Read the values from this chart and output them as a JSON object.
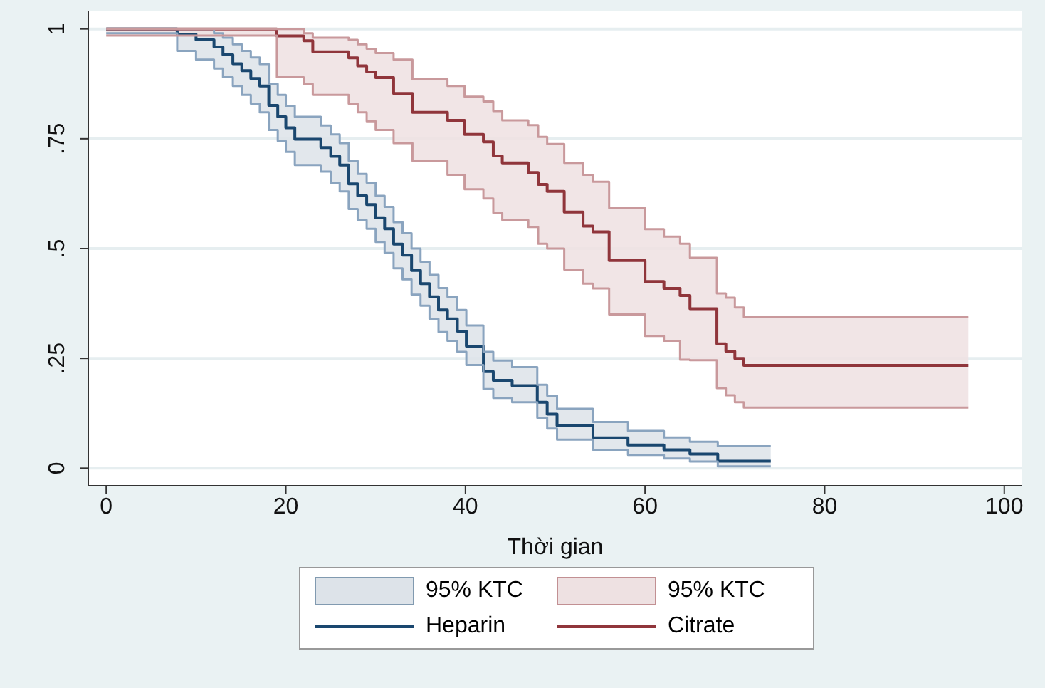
{
  "chart_data": {
    "type": "step",
    "xlabel": "Thời gian",
    "xlim": [
      -2,
      102
    ],
    "xticks": [
      0,
      20,
      40,
      60,
      80,
      100
    ],
    "ylim": [
      -0.04,
      1.04
    ],
    "yticks": [
      0,
      {
        "value": 0.25,
        "label": ".25"
      },
      {
        "value": 0.5,
        "label": ".5"
      },
      {
        "value": 0.75,
        "label": ".75"
      },
      1
    ],
    "grid": "y",
    "legend": "bottom",
    "annotations": [
      "95% KTC",
      "95% KTC"
    ],
    "series": [
      {
        "name": "Heparin",
        "color": "#1a476f",
        "x": [
          0,
          7.9,
          10,
          12,
          13,
          14.1,
          15.1,
          16.1,
          17.1,
          18.1,
          19.1,
          20,
          21,
          23.9,
          25,
          26,
          27,
          28,
          29,
          30,
          31,
          32,
          33,
          34,
          35,
          36,
          37,
          38,
          39.1,
          40.1,
          42,
          43.1,
          45.2,
          48,
          49.1,
          50.2,
          54.2,
          58.1,
          62.1,
          65,
          68.1,
          74
        ],
        "values": [
          1,
          0.988,
          0.975,
          0.959,
          0.941,
          0.921,
          0.905,
          0.887,
          0.87,
          0.826,
          0.8,
          0.775,
          0.749,
          0.73,
          0.71,
          0.69,
          0.647,
          0.62,
          0.6,
          0.57,
          0.545,
          0.51,
          0.485,
          0.45,
          0.42,
          0.39,
          0.36,
          0.34,
          0.312,
          0.278,
          0.22,
          0.2,
          0.188,
          0.15,
          0.123,
          0.097,
          0.069,
          0.053,
          0.042,
          0.032,
          0.016,
          0.016
        ],
        "upper": [
          1,
          1,
          1,
          0.99,
          0.98,
          0.965,
          0.95,
          0.935,
          0.92,
          0.875,
          0.85,
          0.825,
          0.8,
          0.78,
          0.76,
          0.74,
          0.7,
          0.67,
          0.65,
          0.62,
          0.595,
          0.56,
          0.535,
          0.5,
          0.47,
          0.44,
          0.41,
          0.39,
          0.36,
          0.325,
          0.265,
          0.245,
          0.23,
          0.19,
          0.165,
          0.135,
          0.105,
          0.085,
          0.07,
          0.06,
          0.05,
          0.05
        ],
        "lower": [
          0.99,
          0.95,
          0.93,
          0.91,
          0.89,
          0.87,
          0.85,
          0.83,
          0.81,
          0.77,
          0.745,
          0.72,
          0.69,
          0.675,
          0.65,
          0.63,
          0.59,
          0.565,
          0.545,
          0.515,
          0.49,
          0.455,
          0.43,
          0.395,
          0.37,
          0.34,
          0.31,
          0.29,
          0.265,
          0.235,
          0.18,
          0.16,
          0.15,
          0.115,
          0.09,
          0.065,
          0.042,
          0.03,
          0.022,
          0.015,
          0.004,
          0.004
        ]
      },
      {
        "name": "Citrate",
        "color": "#90353b",
        "x": [
          0,
          19,
          22,
          23,
          27,
          28,
          29,
          30,
          32,
          34.1,
          38,
          39.9,
          42,
          43.1,
          44.1,
          47,
          48.1,
          49.1,
          51,
          53.1,
          54.2,
          56,
          60,
          62.1,
          63.9,
          65,
          68,
          69,
          70,
          71,
          96
        ],
        "values": [
          1,
          0.984,
          0.973,
          0.948,
          0.934,
          0.916,
          0.902,
          0.889,
          0.853,
          0.81,
          0.792,
          0.76,
          0.743,
          0.711,
          0.695,
          0.673,
          0.646,
          0.63,
          0.583,
          0.551,
          0.538,
          0.473,
          0.425,
          0.409,
          0.393,
          0.363,
          0.283,
          0.266,
          0.25,
          0.234,
          0.234
        ],
        "upper": [
          1,
          1,
          0.99,
          0.98,
          0.975,
          0.965,
          0.955,
          0.945,
          0.93,
          0.885,
          0.87,
          0.846,
          0.835,
          0.813,
          0.792,
          0.781,
          0.754,
          0.738,
          0.695,
          0.668,
          0.652,
          0.592,
          0.544,
          0.527,
          0.511,
          0.479,
          0.398,
          0.388,
          0.366,
          0.344,
          0.344
        ],
        "lower": [
          0.985,
          0.89,
          0.875,
          0.85,
          0.83,
          0.81,
          0.79,
          0.77,
          0.74,
          0.7,
          0.668,
          0.635,
          0.614,
          0.581,
          0.565,
          0.549,
          0.511,
          0.5,
          0.452,
          0.42,
          0.409,
          0.35,
          0.301,
          0.29,
          0.247,
          0.246,
          0.182,
          0.166,
          0.15,
          0.138,
          0.138
        ]
      },
      {
        "color": "#8aa4bf",
        "x": [
          0,
          7.9,
          10,
          12,
          13,
          14.1,
          15.1,
          16.1,
          17.1,
          18.1,
          19.1,
          20,
          21,
          23.9,
          25,
          26,
          27,
          28,
          29,
          30,
          31,
          32,
          33,
          34,
          35,
          36,
          37,
          38,
          39.1,
          40.1,
          42,
          43.1,
          45.2,
          48,
          49.1,
          50.2,
          54.2,
          58.1,
          62.1,
          65,
          68.1,
          74
        ],
        "values": [
          1,
          1,
          1,
          0.99,
          0.98,
          0.965,
          0.95,
          0.935,
          0.92,
          0.875,
          0.85,
          0.825,
          0.8,
          0.78,
          0.76,
          0.74,
          0.7,
          0.67,
          0.65,
          0.62,
          0.595,
          0.56,
          0.535,
          0.5,
          0.47,
          0.44,
          0.41,
          0.39,
          0.36,
          0.325,
          0.265,
          0.245,
          0.23,
          0.19,
          0.165,
          0.135,
          0.105,
          0.085,
          0.07,
          0.06,
          0.05,
          0.05
        ]
      },
      {
        "color": "#8aa4bf",
        "x": [
          0,
          7.9,
          10,
          12,
          13,
          14.1,
          15.1,
          16.1,
          17.1,
          18.1,
          19.1,
          20,
          21,
          23.9,
          25,
          26,
          27,
          28,
          29,
          30,
          31,
          32,
          33,
          34,
          35,
          36,
          37,
          38,
          39.1,
          40.1,
          42,
          43.1,
          45.2,
          48,
          49.1,
          50.2,
          54.2,
          58.1,
          62.1,
          65,
          68.1,
          74
        ],
        "values": [
          0.99,
          0.95,
          0.93,
          0.91,
          0.89,
          0.87,
          0.85,
          0.83,
          0.81,
          0.77,
          0.745,
          0.72,
          0.69,
          0.675,
          0.65,
          0.63,
          0.59,
          0.565,
          0.545,
          0.515,
          0.49,
          0.455,
          0.43,
          0.395,
          0.37,
          0.34,
          0.31,
          0.29,
          0.265,
          0.235,
          0.18,
          0.16,
          0.15,
          0.115,
          0.09,
          0.065,
          0.042,
          0.03,
          0.022,
          0.015,
          0.004,
          0.004
        ]
      },
      {
        "color": "#c9999c",
        "x": [
          0,
          19,
          22,
          23,
          27,
          28,
          29,
          30,
          32,
          34.1,
          38,
          39.9,
          42,
          43.1,
          44.1,
          47,
          48.1,
          49.1,
          51,
          53.1,
          54.2,
          56,
          60,
          62.1,
          63.9,
          65,
          68,
          69,
          70,
          71,
          96
        ],
        "values": [
          1,
          1,
          0.99,
          0.98,
          0.975,
          0.965,
          0.955,
          0.945,
          0.93,
          0.885,
          0.87,
          0.846,
          0.835,
          0.813,
          0.792,
          0.781,
          0.754,
          0.738,
          0.695,
          0.668,
          0.652,
          0.592,
          0.544,
          0.527,
          0.511,
          0.479,
          0.398,
          0.388,
          0.366,
          0.344,
          0.344
        ]
      },
      {
        "color": "#c9999c",
        "x": [
          0,
          19,
          22,
          23,
          27,
          28,
          29,
          30,
          32,
          34.1,
          38,
          39.9,
          42,
          43.1,
          44.1,
          47,
          48.1,
          49.1,
          51,
          53.1,
          54.2,
          56,
          60,
          62.1,
          63.9,
          65,
          68,
          69,
          70,
          71,
          96
        ],
        "values": [
          0.985,
          0.89,
          0.875,
          0.85,
          0.83,
          0.81,
          0.79,
          0.77,
          0.74,
          0.7,
          0.668,
          0.635,
          0.614,
          0.581,
          0.565,
          0.549,
          0.511,
          0.5,
          0.452,
          0.42,
          0.409,
          0.35,
          0.301,
          0.29,
          0.247,
          0.246,
          0.182,
          0.166,
          0.15,
          0.138,
          0.138
        ]
      }
    ]
  }
}
